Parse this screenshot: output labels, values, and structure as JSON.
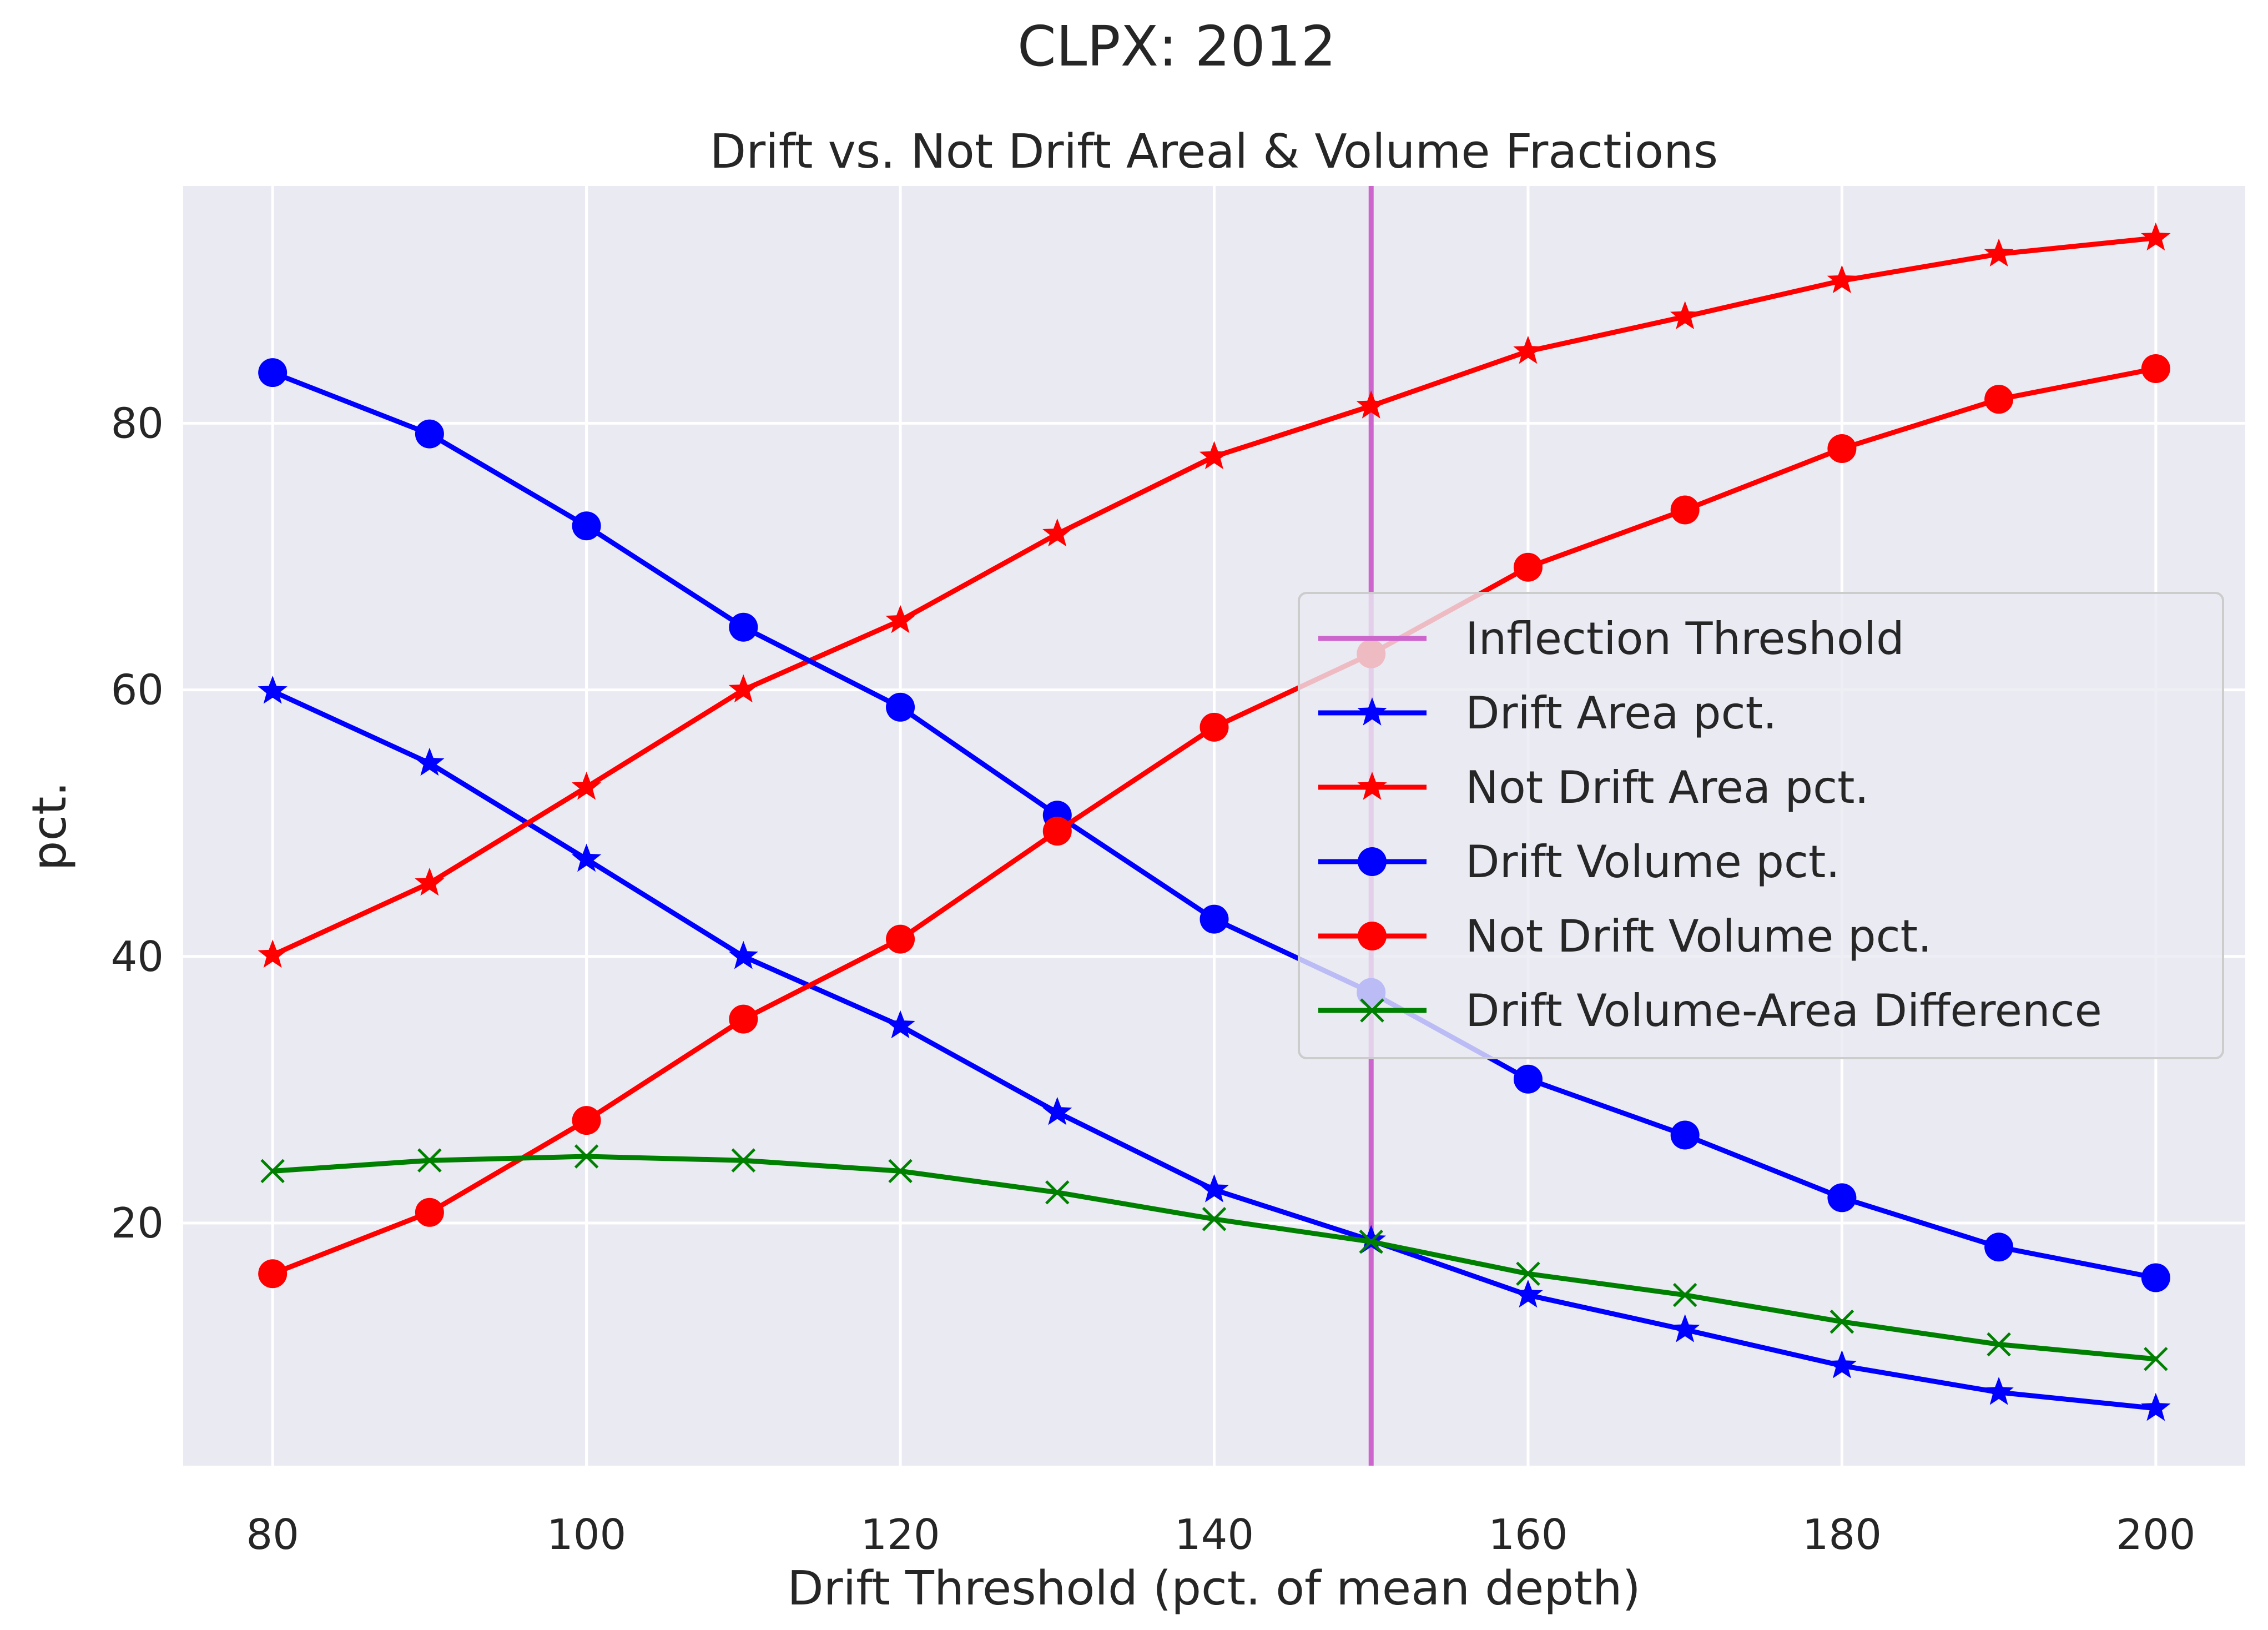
{
  "chart_data": {
    "type": "line",
    "suptitle": "CLPX: 2012",
    "title": "Drift vs. Not Drift Areal & Volume Fractions",
    "xlabel": "Drift Threshold (pct. of mean depth)",
    "ylabel": "pct.",
    "xlim": [
      74.3,
      205.7
    ],
    "ylim": [
      1.8,
      97.8
    ],
    "xticks": [
      80,
      100,
      120,
      140,
      160,
      180,
      200
    ],
    "yticks": [
      20,
      40,
      60,
      80
    ],
    "grid": true,
    "background": "#eaeaf2",
    "legend_position": "center-right",
    "x": [
      80,
      90,
      100,
      110,
      120,
      130,
      140,
      150,
      160,
      170,
      180,
      190,
      200
    ],
    "vline": {
      "name": "Inflection Threshold",
      "x": 150,
      "color": "#cc66cc"
    },
    "series": [
      {
        "name": "Drift Area pct.",
        "color": "#0000ff",
        "marker": "star",
        "values": [
          59.9,
          54.5,
          47.3,
          40.0,
          34.8,
          28.3,
          22.5,
          18.7,
          14.6,
          12.0,
          9.3,
          7.3,
          6.1
        ]
      },
      {
        "name": "Not Drift Area pct.",
        "color": "#ff0000",
        "marker": "star",
        "values": [
          40.1,
          45.5,
          52.7,
          60.0,
          65.2,
          71.7,
          77.5,
          81.3,
          85.4,
          88.0,
          90.7,
          92.7,
          93.9
        ]
      },
      {
        "name": "Drift Volume pct.",
        "color": "#0000ff",
        "marker": "circle",
        "values": [
          83.8,
          79.2,
          72.3,
          64.7,
          58.7,
          50.6,
          42.8,
          37.3,
          30.8,
          26.6,
          21.9,
          18.2,
          15.9
        ]
      },
      {
        "name": "Not Drift Volume pct.",
        "color": "#ff0000",
        "marker": "circle",
        "values": [
          16.2,
          20.8,
          27.7,
          35.3,
          41.3,
          49.4,
          57.2,
          62.7,
          69.2,
          73.5,
          78.1,
          81.8,
          84.1
        ]
      },
      {
        "name": "Drift Volume-Area Difference",
        "color": "#008000",
        "marker": "x",
        "values": [
          23.9,
          24.7,
          25.0,
          24.7,
          23.9,
          22.3,
          20.3,
          18.6,
          16.2,
          14.6,
          12.6,
          10.9,
          9.8
        ]
      }
    ]
  }
}
